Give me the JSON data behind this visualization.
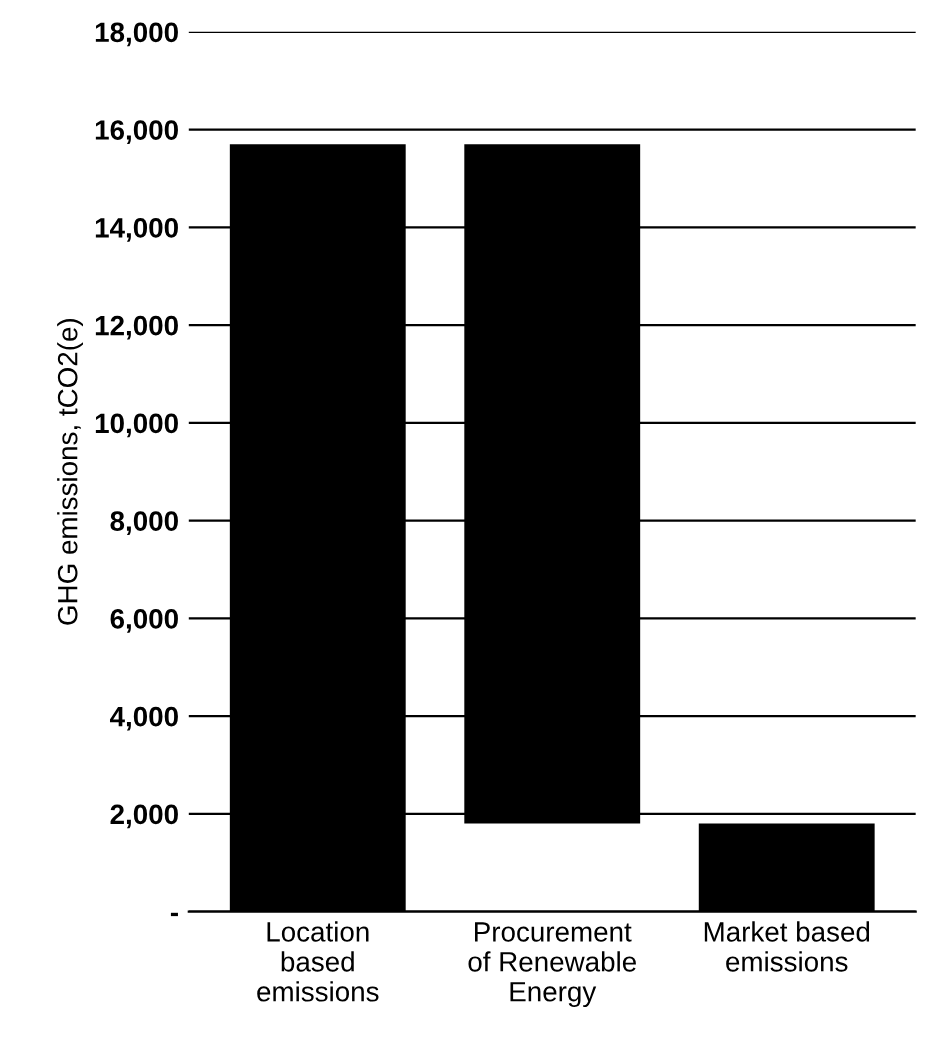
{
  "chart_data": {
    "type": "bar",
    "ylabel": "GHG emissions, tCO2(e)",
    "categories": [
      "Location\nbased\nemissions",
      "Procurement\nof Renewable\nEnergy",
      "Market based\nemissions"
    ],
    "values": [
      15700,
      13900,
      1800
    ],
    "base": [
      0,
      1800,
      0
    ],
    "color": "#000000",
    "ylim": [
      0,
      18000
    ],
    "yticks": [
      {
        "value": 0,
        "label": "-"
      },
      {
        "value": 2000,
        "label": "2,000"
      },
      {
        "value": 4000,
        "label": "4,000"
      },
      {
        "value": 6000,
        "label": "6,000"
      },
      {
        "value": 8000,
        "label": "8,000"
      },
      {
        "value": 10000,
        "label": "10,000"
      },
      {
        "value": 12000,
        "label": "12,000"
      },
      {
        "value": 14000,
        "label": "14,000"
      },
      {
        "value": 16000,
        "label": "16,000"
      },
      {
        "value": 18000,
        "label": "18,000"
      }
    ],
    "grid": "y"
  }
}
